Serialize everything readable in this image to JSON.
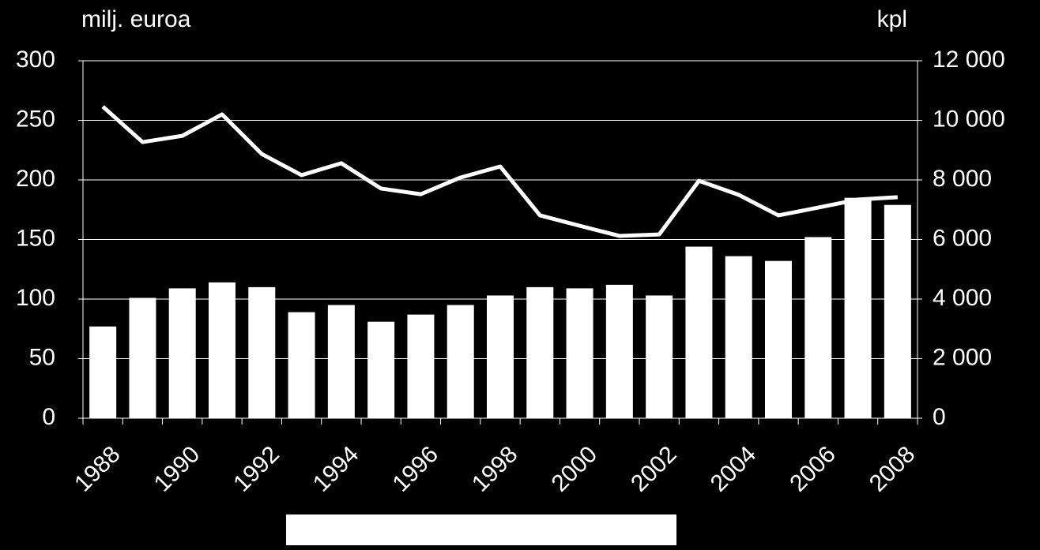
{
  "chart_data": {
    "type": "bar-line",
    "y_label": "milj. euroa",
    "y2_label": "kpl",
    "categories": [
      "1988",
      null,
      "1990",
      null,
      "1992",
      null,
      "1994",
      null,
      "1996",
      null,
      "1998",
      null,
      "2000",
      null,
      "2002",
      null,
      "2004",
      null,
      "2006",
      null,
      "2008"
    ],
    "series": [
      {
        "type": "bar",
        "color": "#ffffff",
        "axis": "y",
        "values": [
          77,
          101,
          109,
          114,
          110,
          89,
          95,
          81,
          87,
          95,
          103,
          110,
          109,
          112,
          103,
          144,
          136,
          132,
          152,
          185,
          179
        ]
      },
      {
        "type": "line",
        "color": "#ffffff",
        "axis": "y2",
        "values": [
          10460,
          9270,
          9480,
          10200,
          8870,
          8160,
          8560,
          7710,
          7520,
          8080,
          8450,
          6810,
          6460,
          6120,
          6170,
          7970,
          7500,
          6810,
          7070,
          7340,
          7420
        ]
      }
    ],
    "ylim": [
      0,
      300
    ],
    "yticks": [
      0,
      50,
      100,
      150,
      200,
      250,
      300
    ],
    "y2lim": [
      0,
      12000
    ],
    "y2ticks": [
      0,
      {
        "value": 2000,
        "label": "2 000"
      },
      {
        "value": 4000,
        "label": "4 000"
      },
      {
        "value": 6000,
        "label": "6 000"
      },
      {
        "value": 8000,
        "label": "8 000"
      },
      {
        "value": 10000,
        "label": "10 000"
      },
      {
        "value": 12000,
        "label": "12 000"
      }
    ],
    "grid": true
  }
}
